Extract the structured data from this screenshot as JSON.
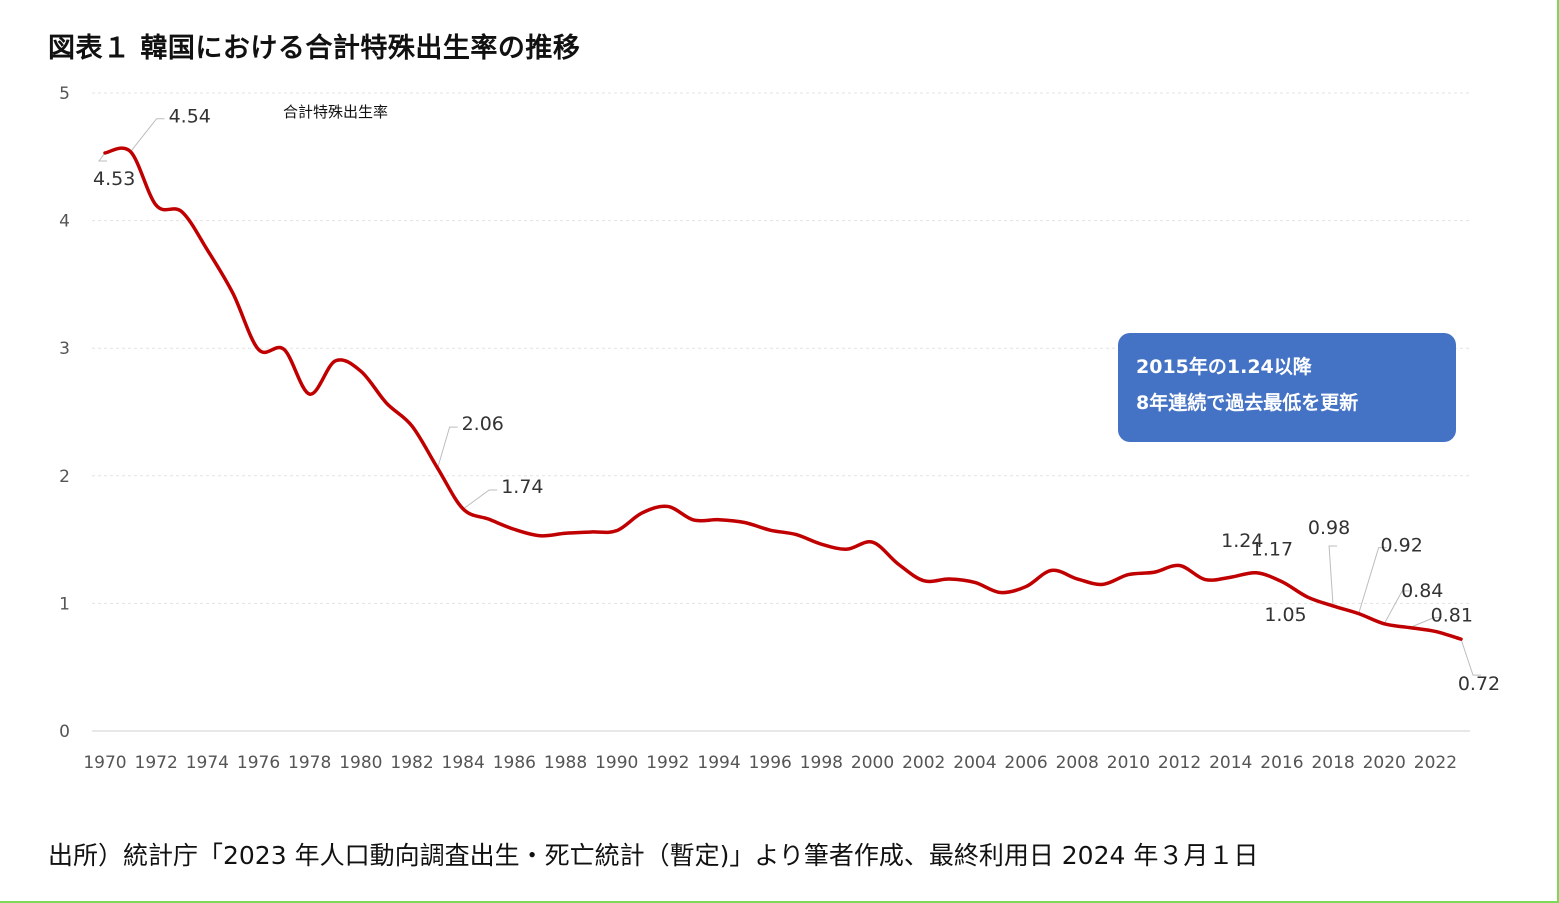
{
  "title": "図表１ 韓国における合計特殊出生率の推移",
  "source": "出所）統計庁「2023 年人口動向調査出生・死亡統計（暫定)」より筆者作成、最終利用日 2024 年３月１日",
  "callout": {
    "line1": "2015年の1.24以降",
    "line2": "8年連続で過去最低を更新"
  },
  "colors": {
    "line": "#c00000",
    "callout": "#4472c4",
    "border": "#7ed957"
  },
  "chart_data": {
    "type": "line",
    "title": "",
    "xlabel": "",
    "ylabel": "",
    "ylim": [
      0,
      5
    ],
    "yticks": [
      0,
      1,
      2,
      3,
      4,
      5
    ],
    "xticks": [
      1970,
      1972,
      1974,
      1976,
      1978,
      1980,
      1982,
      1984,
      1986,
      1988,
      1990,
      1992,
      1994,
      1996,
      1998,
      2000,
      2002,
      2004,
      2006,
      2008,
      2010,
      2012,
      2014,
      2016,
      2018,
      2020,
      2022
    ],
    "grid": true,
    "legend": "top-left",
    "series": [
      {
        "name": "合計特殊出生率",
        "x": [
          1970,
          1971,
          1972,
          1973,
          1974,
          1975,
          1976,
          1977,
          1978,
          1979,
          1980,
          1981,
          1982,
          1983,
          1984,
          1985,
          1986,
          1987,
          1988,
          1989,
          1990,
          1991,
          1992,
          1993,
          1994,
          1995,
          1996,
          1997,
          1998,
          1999,
          2000,
          2001,
          2002,
          2003,
          2004,
          2005,
          2006,
          2007,
          2008,
          2009,
          2010,
          2011,
          2012,
          2013,
          2014,
          2015,
          2016,
          2017,
          2018,
          2019,
          2020,
          2021,
          2022,
          2023
        ],
        "values": [
          4.53,
          4.54,
          4.12,
          4.07,
          3.77,
          3.43,
          2.99,
          2.99,
          2.64,
          2.9,
          2.82,
          2.57,
          2.39,
          2.06,
          1.74,
          1.66,
          1.58,
          1.53,
          1.55,
          1.56,
          1.57,
          1.71,
          1.76,
          1.654,
          1.656,
          1.634,
          1.574,
          1.54,
          1.464,
          1.425,
          1.48,
          1.309,
          1.178,
          1.191,
          1.164,
          1.085,
          1.132,
          1.259,
          1.192,
          1.149,
          1.226,
          1.244,
          1.297,
          1.187,
          1.205,
          1.24,
          1.17,
          1.05,
          0.98,
          0.92,
          0.84,
          0.81,
          0.78,
          0.72
        ]
      }
    ],
    "data_labels": [
      {
        "x": 1970,
        "text": "4.53"
      },
      {
        "x": 1971,
        "text": "4.54"
      },
      {
        "x": 1983,
        "text": "2.06"
      },
      {
        "x": 1984,
        "text": "1.74"
      },
      {
        "x": 2015,
        "text": "1.24"
      },
      {
        "x": 2016,
        "text": "1.17"
      },
      {
        "x": 2017,
        "text": "1.05"
      },
      {
        "x": 2018,
        "text": "0.98"
      },
      {
        "x": 2019,
        "text": "0.92"
      },
      {
        "x": 2020,
        "text": "0.84"
      },
      {
        "x": 2021,
        "text": "0.81"
      },
      {
        "x": 2023,
        "text": "0.72"
      }
    ]
  }
}
